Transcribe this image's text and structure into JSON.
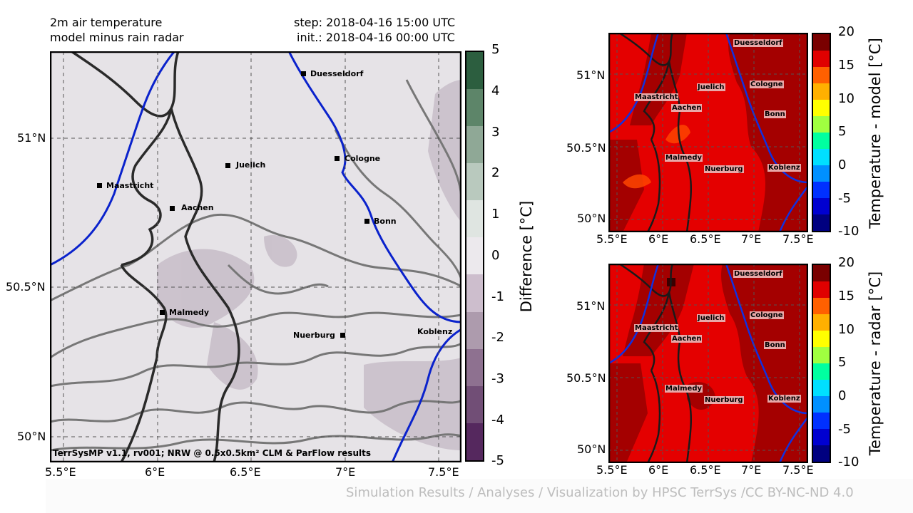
{
  "main_map": {
    "title_line1": "2m air temperature",
    "title_line2": "model minus rain radar",
    "step_line": "step: 2018-04-16 15:00 UTC",
    "init_line": "init.: 2018-04-16 00:00 UTC",
    "footer_text": "TerrSysMP v1.1, rv001; NRW @ 0.5x0.5km² CLM & ParFlow results",
    "lat_ticks": [
      "51°N",
      "50.5°N",
      "50°N"
    ],
    "lon_ticks": [
      "5.5°E",
      "6°E",
      "6.5°E",
      "7°E",
      "7.5°E"
    ],
    "cities": [
      {
        "name": "Duesseldorf"
      },
      {
        "name": "Juelich"
      },
      {
        "name": "Cologne"
      },
      {
        "name": "Maastricht"
      },
      {
        "name": "Aachen"
      },
      {
        "name": "Bonn"
      },
      {
        "name": "Malmedy"
      },
      {
        "name": "Nuerburg"
      },
      {
        "name": "Koblenz"
      }
    ],
    "colorbar": {
      "label": "Difference [°C]",
      "ticks": [
        "5",
        "4",
        "3",
        "2",
        "1",
        "0",
        "-1",
        "-2",
        "-3",
        "-4",
        "-5"
      ],
      "colors": [
        "#2c5e3f",
        "#5d8569",
        "#8fa896",
        "#b9c9be",
        "#dfe5e1",
        "#ece9ed",
        "#cdbecd",
        "#ad9bad",
        "#8e7190",
        "#714e76",
        "#55285e"
      ]
    }
  },
  "model_map": {
    "lat_ticks": [
      "51°N",
      "50.5°N",
      "50°N"
    ],
    "lon_ticks": [
      "5.5°E",
      "6°E",
      "6.5°E",
      "7°E",
      "7.5°E"
    ],
    "cities": [
      "Duesseldorf",
      "Juelich",
      "Cologne",
      "Maastricht",
      "Aachen",
      "Bonn",
      "Malmedy",
      "Nuerburg",
      "Koblenz"
    ],
    "colorbar": {
      "label": "Temperature - model [°C]",
      "ticks": [
        "20",
        "15",
        "10",
        "5",
        "0",
        "-5",
        "-10"
      ],
      "colors": [
        "#7a0000",
        "#e00000",
        "#ff6000",
        "#ffb000",
        "#ffff00",
        "#a0ff40",
        "#00ffa0",
        "#00e0ff",
        "#0090ff",
        "#0030ff",
        "#0000d0",
        "#000080"
      ]
    }
  },
  "radar_map": {
    "lat_ticks": [
      "51°N",
      "50.5°N",
      "50°N"
    ],
    "lon_ticks": [
      "5.5°E",
      "6°E",
      "6.5°E",
      "7°E",
      "7.5°E"
    ],
    "cities": [
      "Duesseldorf",
      "Juelich",
      "Cologne",
      "Maastricht",
      "Aachen",
      "Bonn",
      "Malmedy",
      "Nuerburg",
      "Koblenz"
    ],
    "colorbar": {
      "label": "Temperature - radar [°C]",
      "ticks": [
        "20",
        "15",
        "10",
        "5",
        "0",
        "-5",
        "-10"
      ],
      "colors": [
        "#7a0000",
        "#e00000",
        "#ff6000",
        "#ffb000",
        "#ffff00",
        "#a0ff40",
        "#00ffa0",
        "#00e0ff",
        "#0090ff",
        "#0030ff",
        "#0000d0",
        "#000080"
      ]
    }
  },
  "credit": "Simulation Results / Analyses / Visualization by HPSC TerrSys /CC BY-NC-ND 4.0"
}
